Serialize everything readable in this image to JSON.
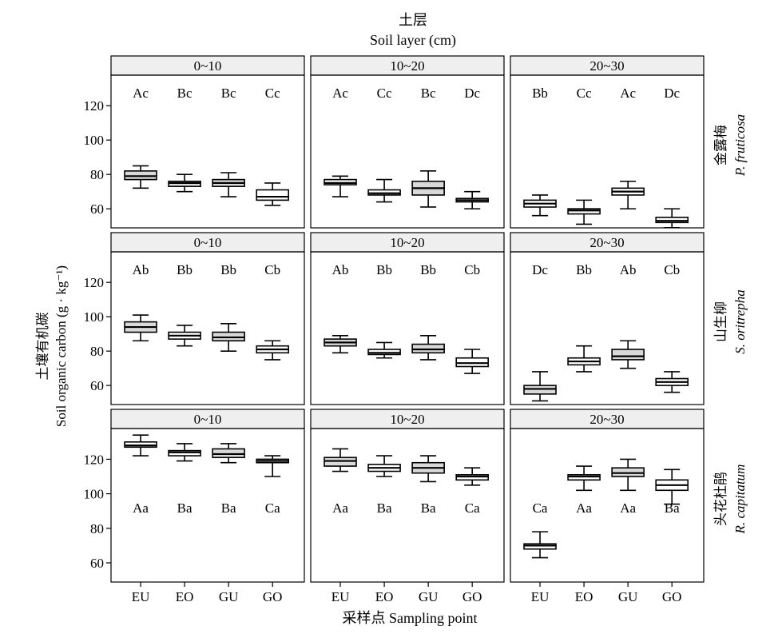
{
  "title_top": "土层",
  "title_sub": "Soil layer (cm)",
  "xlabel": "采样点 Sampling point",
  "ylabel_cn": "土壤有机碳",
  "ylabel_en": "Soil organic carbon (g · kg⁻¹)",
  "yticks": [
    "60",
    "80",
    "100",
    "120"
  ],
  "depths": [
    "0~10",
    "10~20",
    "20~30"
  ],
  "species": [
    {
      "cn": "金露梅",
      "latin": "P. fruticosa"
    },
    {
      "cn": "山生柳",
      "latin": "S. oritrepha"
    },
    {
      "cn": "头花杜鹃",
      "latin": "R. capitatum"
    }
  ],
  "colors": {
    "highlight": "#d9d9d9",
    "box": "#ffffff",
    "strip": "#efefef"
  },
  "chart_data": {
    "type": "boxplot",
    "categories": [
      "EU",
      "EO",
      "GU",
      "GO"
    ],
    "ylim": [
      50,
      138
    ],
    "grid": false,
    "panels": [
      {
        "species": "金露梅",
        "depth": "0~10",
        "label_pos": "top",
        "boxes": [
          {
            "min": 72,
            "q1": 77,
            "median": 79,
            "q3": 82,
            "max": 85,
            "letters": "Ac",
            "fill": "highlight"
          },
          {
            "min": 70,
            "q1": 73,
            "median": 75,
            "q3": 76,
            "max": 80,
            "letters": "Bc",
            "fill": "highlight"
          },
          {
            "min": 67,
            "q1": 73,
            "median": 75,
            "q3": 77,
            "max": 81,
            "letters": "Bc",
            "fill": "highlight"
          },
          {
            "min": 62,
            "q1": 65,
            "median": 67,
            "q3": 71,
            "max": 75,
            "letters": "Cc",
            "fill": "box"
          }
        ]
      },
      {
        "species": "金露梅",
        "depth": "10~20",
        "label_pos": "top",
        "boxes": [
          {
            "min": 67,
            "q1": 74,
            "median": 75,
            "q3": 77,
            "max": 79,
            "letters": "Ac",
            "fill": "box"
          },
          {
            "min": 64,
            "q1": 68,
            "median": 69,
            "q3": 71,
            "max": 77,
            "letters": "Cc",
            "fill": "box"
          },
          {
            "min": 61,
            "q1": 68,
            "median": 72,
            "q3": 76,
            "max": 82,
            "letters": "Bc",
            "fill": "highlight"
          },
          {
            "min": 60,
            "q1": 64,
            "median": 65,
            "q3": 66,
            "max": 70,
            "letters": "Dc",
            "fill": "box"
          }
        ]
      },
      {
        "species": "金露梅",
        "depth": "20~30",
        "label_pos": "top",
        "boxes": [
          {
            "min": 56,
            "q1": 61,
            "median": 63,
            "q3": 65,
            "max": 68,
            "letters": "Bb",
            "fill": "box"
          },
          {
            "min": 51,
            "q1": 57,
            "median": 59,
            "q3": 60,
            "max": 65,
            "letters": "Cc",
            "fill": "box"
          },
          {
            "min": 60,
            "q1": 68,
            "median": 70,
            "q3": 72,
            "max": 76,
            "letters": "Ac",
            "fill": "box"
          },
          {
            "min": 49,
            "q1": 52,
            "median": 53,
            "q3": 55,
            "max": 60,
            "letters": "Dc",
            "fill": "box"
          }
        ]
      },
      {
        "species": "山生柳",
        "depth": "0~10",
        "label_pos": "top",
        "boxes": [
          {
            "min": 86,
            "q1": 91,
            "median": 94,
            "q3": 97,
            "max": 101,
            "letters": "Ab",
            "fill": "highlight"
          },
          {
            "min": 83,
            "q1": 87,
            "median": 89,
            "q3": 91,
            "max": 95,
            "letters": "Bb",
            "fill": "box"
          },
          {
            "min": 80,
            "q1": 86,
            "median": 88,
            "q3": 91,
            "max": 96,
            "letters": "Bb",
            "fill": "highlight"
          },
          {
            "min": 75,
            "q1": 79,
            "median": 81,
            "q3": 83,
            "max": 86,
            "letters": "Cb",
            "fill": "box"
          }
        ]
      },
      {
        "species": "山生柳",
        "depth": "10~20",
        "label_pos": "top",
        "boxes": [
          {
            "min": 79,
            "q1": 83,
            "median": 85,
            "q3": 87,
            "max": 89,
            "letters": "Ab",
            "fill": "highlight"
          },
          {
            "min": 76,
            "q1": 78,
            "median": 79,
            "q3": 81,
            "max": 85,
            "letters": "Bb",
            "fill": "box"
          },
          {
            "min": 75,
            "q1": 79,
            "median": 81,
            "q3": 84,
            "max": 89,
            "letters": "Bb",
            "fill": "highlight"
          },
          {
            "min": 67,
            "q1": 71,
            "median": 73,
            "q3": 76,
            "max": 81,
            "letters": "Cb",
            "fill": "box"
          }
        ]
      },
      {
        "species": "山生柳",
        "depth": "20~30",
        "label_pos": "top",
        "boxes": [
          {
            "min": 51,
            "q1": 55,
            "median": 58,
            "q3": 60,
            "max": 68,
            "letters": "Dc",
            "fill": "highlight"
          },
          {
            "min": 68,
            "q1": 72,
            "median": 74,
            "q3": 76,
            "max": 83,
            "letters": "Bb",
            "fill": "box"
          },
          {
            "min": 70,
            "q1": 75,
            "median": 77,
            "q3": 81,
            "max": 86,
            "letters": "Ab",
            "fill": "highlight"
          },
          {
            "min": 56,
            "q1": 60,
            "median": 62,
            "q3": 64,
            "max": 68,
            "letters": "Cb",
            "fill": "box"
          }
        ]
      },
      {
        "species": "头花杜鹃",
        "depth": "0~10",
        "label_pos": "bottom",
        "boxes": [
          {
            "min": 122,
            "q1": 127,
            "median": 128,
            "q3": 130,
            "max": 134,
            "letters": "Aa",
            "fill": "box"
          },
          {
            "min": 119,
            "q1": 122,
            "median": 124,
            "q3": 125,
            "max": 129,
            "letters": "Ba",
            "fill": "box"
          },
          {
            "min": 118,
            "q1": 121,
            "median": 123,
            "q3": 126,
            "max": 129,
            "letters": "Ba",
            "fill": "highlight"
          },
          {
            "min": 110,
            "q1": 118,
            "median": 119,
            "q3": 120,
            "max": 122,
            "letters": "Ca",
            "fill": "box"
          }
        ]
      },
      {
        "species": "头花杜鹃",
        "depth": "10~20",
        "label_pos": "bottom",
        "boxes": [
          {
            "min": 113,
            "q1": 116,
            "median": 119,
            "q3": 121,
            "max": 126,
            "letters": "Aa",
            "fill": "highlight"
          },
          {
            "min": 110,
            "q1": 113,
            "median": 115,
            "q3": 117,
            "max": 122,
            "letters": "Ba",
            "fill": "box"
          },
          {
            "min": 107,
            "q1": 112,
            "median": 115,
            "q3": 118,
            "max": 122,
            "letters": "Ba",
            "fill": "highlight"
          },
          {
            "min": 105,
            "q1": 108,
            "median": 110,
            "q3": 111,
            "max": 115,
            "letters": "Ca",
            "fill": "box"
          }
        ]
      },
      {
        "species": "头花杜鹃",
        "depth": "20~30",
        "label_pos": "bottom",
        "boxes": [
          {
            "min": 63,
            "q1": 68,
            "median": 70,
            "q3": 71,
            "max": 78,
            "letters": "Ca",
            "fill": "box"
          },
          {
            "min": 102,
            "q1": 108,
            "median": 110,
            "q3": 111,
            "max": 116,
            "letters": "Aa",
            "fill": "box"
          },
          {
            "min": 102,
            "q1": 110,
            "median": 112,
            "q3": 115,
            "max": 120,
            "letters": "Aa",
            "fill": "highlight"
          },
          {
            "min": 94,
            "q1": 102,
            "median": 105,
            "q3": 108,
            "max": 114,
            "letters": "Ba",
            "fill": "box"
          }
        ]
      }
    ]
  }
}
